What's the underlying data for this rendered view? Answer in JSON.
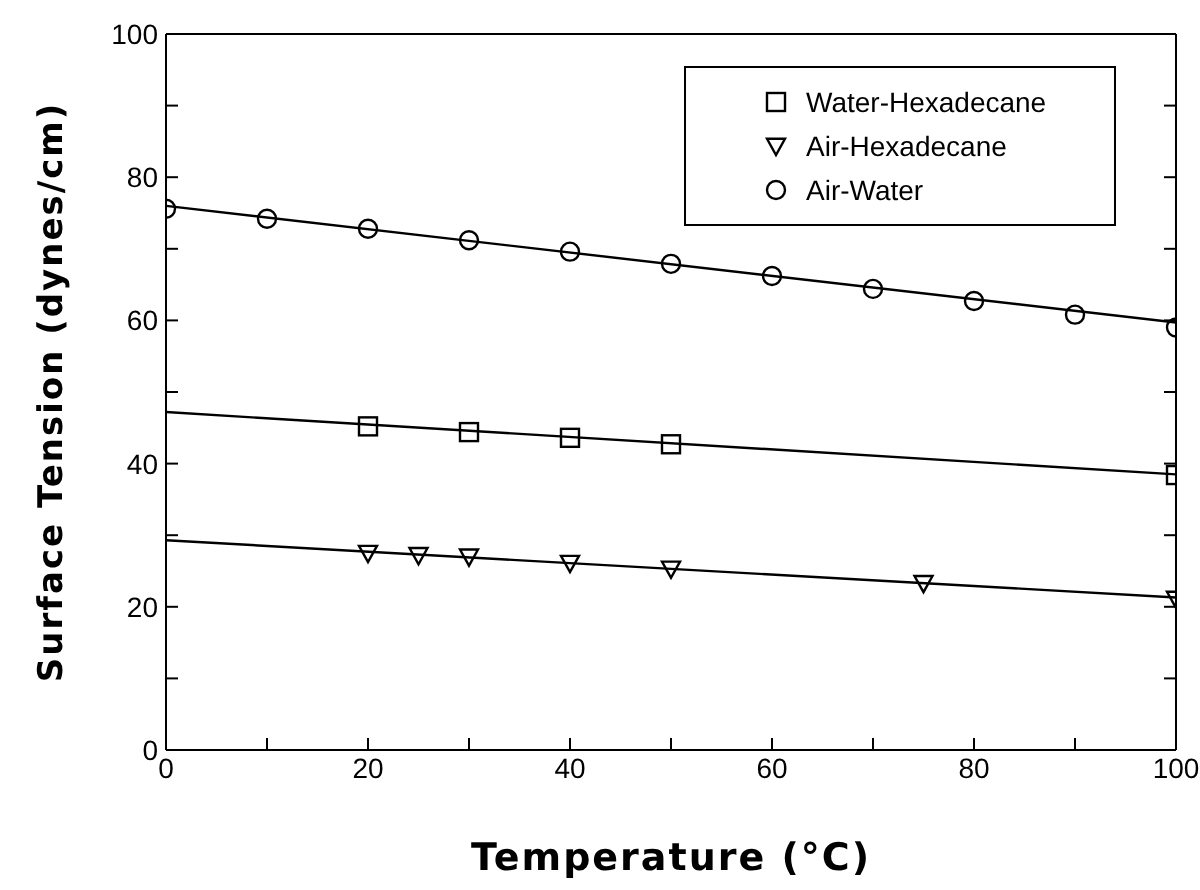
{
  "chart_data": {
    "type": "scatter",
    "xlabel": "Temperature (°C)",
    "ylabel": "Surface Tension (dynes/cm)",
    "xlim": [
      0,
      100
    ],
    "ylim": [
      0,
      100
    ],
    "xticks": [
      0,
      {
        "value": 10,
        "label": null
      },
      20,
      {
        "value": 30,
        "label": null
      },
      40,
      {
        "value": 50,
        "label": null
      },
      60,
      {
        "value": 70,
        "label": null
      },
      80,
      {
        "value": 90,
        "label": null
      },
      100
    ],
    "yticks": [
      0,
      {
        "value": 10,
        "label": null
      },
      20,
      {
        "value": 30,
        "label": null
      },
      40,
      {
        "value": 50,
        "label": null
      },
      60,
      {
        "value": 70,
        "label": null
      },
      80,
      {
        "value": 90,
        "label": null
      },
      100
    ],
    "grid": false,
    "legend": "top right",
    "line_style": "solid",
    "series": [
      {
        "name": "Water-Hexadecane",
        "color": "#000000",
        "marker": "square",
        "x": [
          20,
          30,
          40,
          50,
          100
        ],
        "values": [
          45.2,
          44.4,
          43.6,
          42.7,
          38.4
        ]
      },
      {
        "name": "Air-Hexadecane",
        "color": "#000000",
        "marker": "triangle",
        "x": [
          20,
          25,
          30,
          40,
          50,
          75,
          100
        ],
        "values": [
          27.5,
          27.2,
          27.0,
          26.1,
          25.3,
          23.3,
          21.1
        ]
      },
      {
        "name": "Air-Water",
        "color": "#000000",
        "marker": "circle",
        "x": [
          0,
          10,
          20,
          30,
          40,
          50,
          60,
          70,
          80,
          90,
          100
        ],
        "values": [
          75.6,
          74.2,
          72.8,
          71.2,
          69.6,
          67.9,
          66.2,
          64.4,
          62.7,
          60.8,
          59.0
        ]
      },
      {
        "type": "line",
        "color": "#000000",
        "marker": "none",
        "x": [
          0,
          100
        ],
        "values": [
          47.2,
          38.5
        ]
      },
      {
        "type": "line",
        "color": "#000000",
        "marker": "none",
        "x": [
          0,
          100
        ],
        "values": [
          29.3,
          21.3
        ]
      },
      {
        "type": "line",
        "color": "#000000",
        "marker": "none",
        "x": [
          0,
          100
        ],
        "values": [
          76.0,
          59.7
        ]
      }
    ]
  }
}
